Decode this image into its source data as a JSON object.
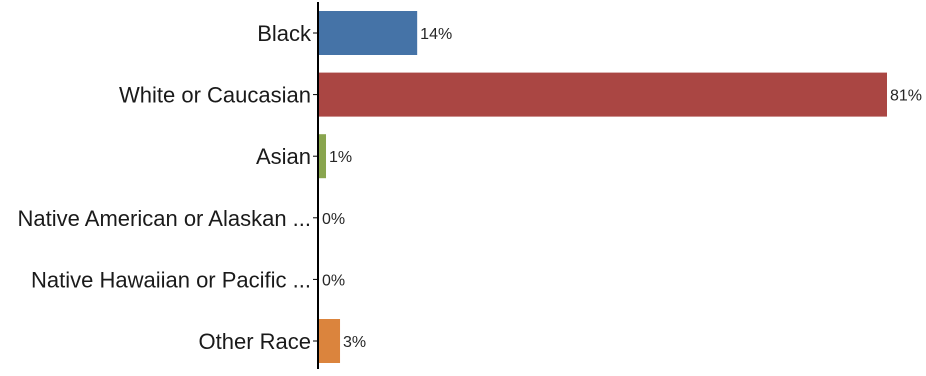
{
  "chart_data": {
    "type": "bar",
    "orientation": "horizontal",
    "categories": [
      "Black",
      "White or Caucasian",
      "Asian",
      "Native American or Alaskan ...",
      "Native Hawaiian or Pacific ...",
      "Other Race"
    ],
    "values": [
      14,
      81,
      1,
      0,
      0,
      3
    ],
    "value_labels": [
      "14%",
      "81%",
      "1%",
      "0%",
      "0%",
      "3%"
    ],
    "colors": [
      "#4573a7",
      "#aa4643",
      "#89a54e",
      "#71588f",
      "#4198af",
      "#db843d"
    ],
    "xlim": [
      0,
      81
    ],
    "grid": false,
    "legend": "none",
    "title": "",
    "xlabel": "",
    "ylabel": ""
  }
}
